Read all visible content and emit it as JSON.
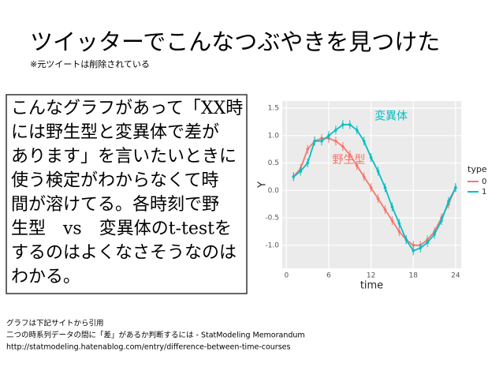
{
  "slide": {
    "title": "ツイッターでこんなつぶやきを見つけた",
    "note": "※元ツイートは削除されている",
    "body": [
      "こんなグラフがあって「XX時",
      "には野生型と変異体で差が",
      "あります」を言いたいときに",
      "使う検定がわからなくて時",
      "間が溶けてる。各時刻で野",
      "生型　vs　変異体のt-testを",
      "するのはよくなさそうなのは",
      "わかる。"
    ],
    "footer": [
      "グラフは下記サイトから引用",
      "二つの時系列データの間に「差」があるか判断するには - StatModeling Memorandum",
      "http://statmodeling.hatenablog.com/entry/difference-between-time-courses"
    ]
  },
  "chart_data": {
    "type": "line",
    "x_label": "time",
    "y_label": "Y",
    "x": [
      1,
      2,
      3,
      4,
      5,
      6,
      7,
      8,
      9,
      10,
      11,
      12,
      13,
      14,
      15,
      16,
      17,
      18,
      19,
      20,
      21,
      22,
      23,
      24
    ],
    "series": [
      {
        "name": "0",
        "color": "#F8766D",
        "values": [
          0.25,
          0.4,
          0.75,
          0.9,
          0.95,
          0.95,
          0.9,
          0.8,
          0.65,
          0.45,
          0.25,
          0.05,
          -0.15,
          -0.35,
          -0.55,
          -0.75,
          -0.9,
          -1.0,
          -1.0,
          -0.9,
          -0.75,
          -0.5,
          -0.25,
          0.05
        ],
        "errors": [
          0.08,
          0.08,
          0.08,
          0.08,
          0.08,
          0.08,
          0.08,
          0.08,
          0.08,
          0.08,
          0.08,
          0.08,
          0.08,
          0.08,
          0.08,
          0.08,
          0.08,
          0.08,
          0.08,
          0.08,
          0.08,
          0.08,
          0.08,
          0.08
        ]
      },
      {
        "name": "1",
        "color": "#00BFC4",
        "values": [
          0.25,
          0.35,
          0.5,
          0.9,
          0.9,
          1.0,
          1.1,
          1.2,
          1.2,
          1.1,
          0.9,
          0.6,
          0.35,
          0.05,
          -0.3,
          -0.6,
          -0.9,
          -1.1,
          -1.05,
          -0.95,
          -0.8,
          -0.55,
          -0.2,
          0.05
        ],
        "errors": [
          0.08,
          0.08,
          0.08,
          0.08,
          0.08,
          0.08,
          0.08,
          0.08,
          0.08,
          0.08,
          0.08,
          0.08,
          0.08,
          0.08,
          0.08,
          0.08,
          0.08,
          0.08,
          0.08,
          0.08,
          0.08,
          0.08,
          0.08,
          0.08
        ]
      }
    ],
    "legend_title": "type",
    "legend": "right",
    "annotations": [
      {
        "text": "変異体",
        "x": 12.5,
        "y": 1.35,
        "color": "#00BFC4"
      },
      {
        "text": "野生型",
        "x": 6.5,
        "y": 0.55,
        "color": "#F8766D"
      }
    ],
    "xlim": [
      -0.6,
      24.8
    ],
    "ylim": [
      -1.42,
      1.63
    ],
    "xticks": [
      0,
      6,
      12,
      18,
      24
    ],
    "yticks": [
      {
        "value": -1.0,
        "label": "-1.0"
      },
      -0.5,
      {
        "value": 0.0,
        "label": "0.0"
      },
      0.5,
      {
        "value": 1.0,
        "label": "1.0"
      },
      1.5
    ],
    "grid": true
  }
}
